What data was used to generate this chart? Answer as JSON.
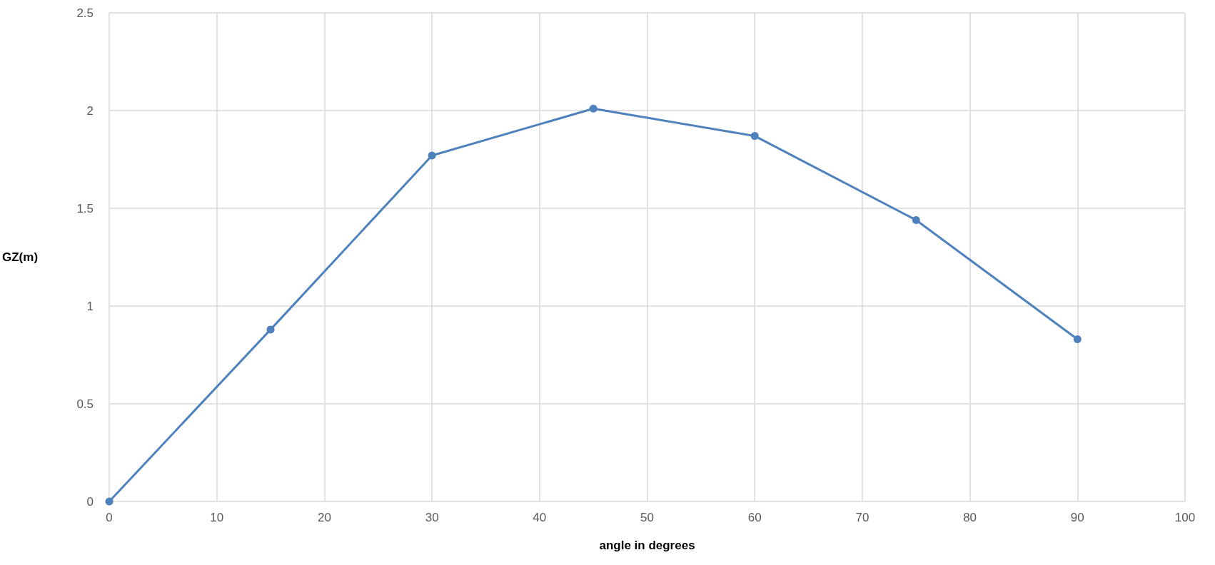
{
  "chart_data": {
    "type": "line",
    "xlabel": "angle in degrees",
    "ylabel": "GZ(m)",
    "x": [
      0,
      15,
      30,
      45,
      60,
      75,
      90
    ],
    "series": [
      {
        "color": "#4f81bd",
        "values": [
          0,
          0.88,
          1.77,
          2.01,
          1.87,
          1.44,
          0.83
        ]
      }
    ],
    "xlim": [
      0,
      100
    ],
    "xticks": [
      0,
      10,
      20,
      30,
      40,
      50,
      60,
      70,
      80,
      90,
      100
    ],
    "ylim": [
      0,
      2.5
    ],
    "yticks": [
      0,
      0.5,
      1,
      1.5,
      2,
      2.5
    ],
    "grid": true,
    "marker": "circle",
    "line_style": "solid"
  }
}
